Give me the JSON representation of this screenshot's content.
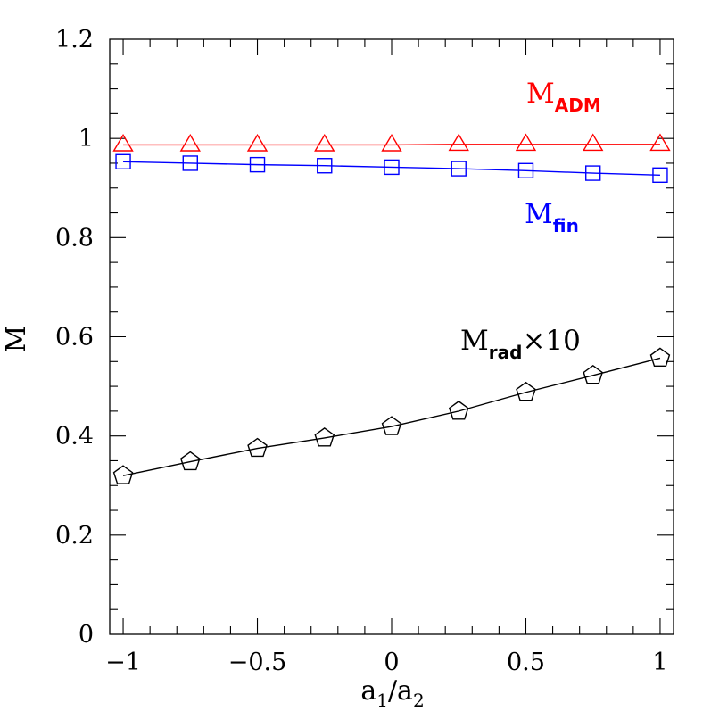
{
  "chart_data": {
    "type": "line",
    "xlabel": "a",
    "xlabel_sub1": "1",
    "xlabel_mid": "/a",
    "xlabel_sub2": "2",
    "ylabel": "M",
    "xlim": [
      -1.05,
      1.05
    ],
    "ylim": [
      0,
      1.2
    ],
    "x_ticks": [
      -1,
      -0.5,
      0,
      0.5,
      1
    ],
    "x_tick_labels": [
      "−1",
      "−0.5",
      "0",
      "0.5",
      "1"
    ],
    "y_ticks": [
      0,
      0.2,
      0.4,
      0.6,
      0.8,
      1,
      1.2
    ],
    "y_tick_labels": [
      "0",
      "0.2",
      "0.4",
      "0.6",
      "0.8",
      "1",
      "1.2"
    ],
    "grid": false,
    "legend": "inline-labels",
    "x": [
      -1,
      -0.75,
      -0.5,
      -0.25,
      0,
      0.25,
      0.5,
      0.75,
      1
    ],
    "series": [
      {
        "key": "adm",
        "label_main": "M",
        "label_sub": "ADM",
        "label_suffix": "",
        "color": "#ff0000",
        "marker": "triangle",
        "values": [
          0.987,
          0.987,
          0.987,
          0.987,
          0.987,
          0.988,
          0.988,
          0.988,
          0.988
        ]
      },
      {
        "key": "fin",
        "label_main": "M",
        "label_sub": "fin",
        "label_suffix": "",
        "color": "#0000ff",
        "marker": "square",
        "values": [
          0.953,
          0.95,
          0.947,
          0.945,
          0.942,
          0.939,
          0.935,
          0.93,
          0.926
        ]
      },
      {
        "key": "rad",
        "label_main": "M",
        "label_sub": "rad",
        "label_suffix": "×10",
        "color": "#000000",
        "marker": "pentagon",
        "values": [
          0.32,
          0.348,
          0.375,
          0.396,
          0.419,
          0.45,
          0.488,
          0.522,
          0.557
        ]
      }
    ]
  }
}
